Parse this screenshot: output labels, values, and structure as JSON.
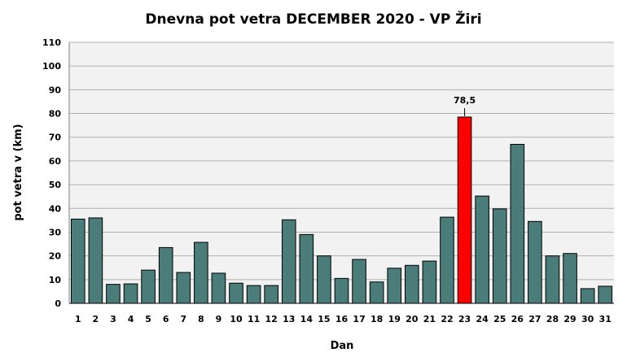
{
  "chart_data": {
    "type": "bar",
    "title": "Dnevna pot vetra DECEMBER 2020 - VP Žiri",
    "xlabel": "Dan",
    "ylabel": "pot vetra  v (km)",
    "ylim": [
      0,
      110
    ],
    "yticks": [
      0,
      10,
      20,
      30,
      40,
      50,
      60,
      70,
      80,
      90,
      100,
      110
    ],
    "grid": true,
    "categories": [
      "1",
      "2",
      "3",
      "4",
      "5",
      "6",
      "7",
      "8",
      "9",
      "10",
      "11",
      "12",
      "13",
      "14",
      "15",
      "16",
      "17",
      "18",
      "19",
      "20",
      "21",
      "22",
      "23",
      "24",
      "25",
      "26",
      "27",
      "28",
      "29",
      "30",
      "31"
    ],
    "values": [
      35.5,
      36,
      8,
      8.2,
      14,
      23.5,
      13,
      25.7,
      12.7,
      8.5,
      7.5,
      7.5,
      35.2,
      29,
      20,
      10.5,
      18.5,
      9,
      14.8,
      16,
      17.8,
      36.3,
      78.5,
      45.2,
      39.8,
      67,
      34.5,
      20,
      21,
      6.2,
      7.2
    ],
    "highlight": {
      "index": 22,
      "label": "78,5",
      "color": "#ff0000"
    },
    "bar_color": "#4a7c7a",
    "plot_background": "#f2f2f2"
  }
}
